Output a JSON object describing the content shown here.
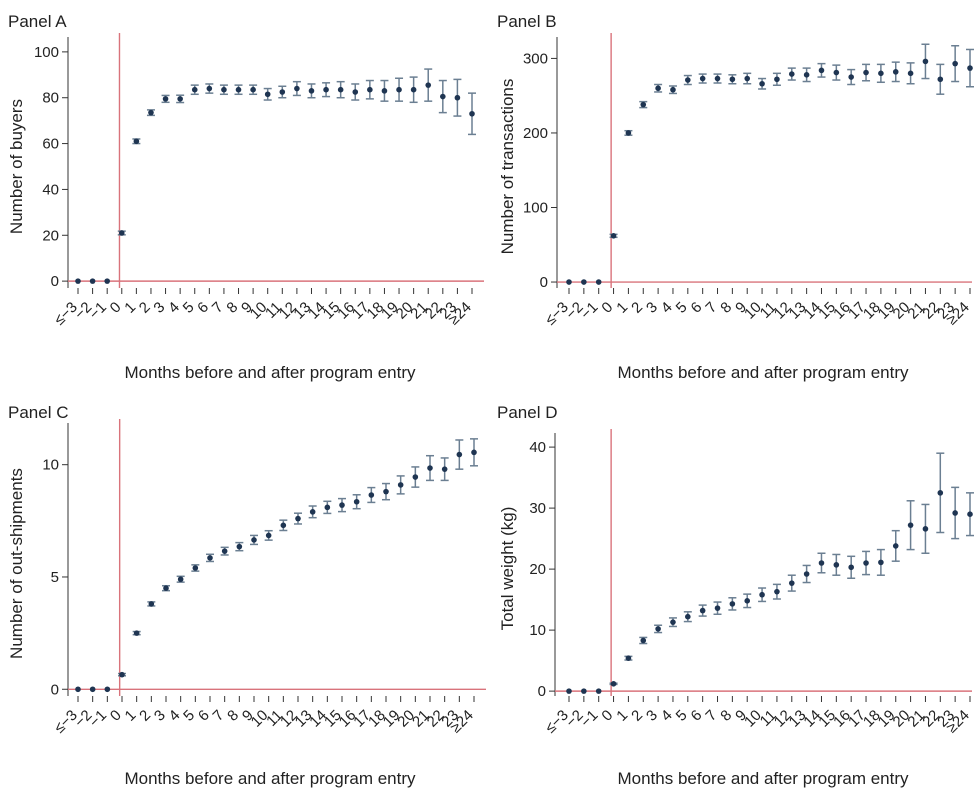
{
  "colors": {
    "point": "#1f3552",
    "error_bar": "#6b7f92",
    "reference_line": "#d9737b",
    "axis": "#333333"
  },
  "chart_data": [
    {
      "panel": "Panel A",
      "type": "scatter",
      "xlabel": "Months before and after program entry",
      "ylabel": "Number of buyers",
      "categories": [
        "≤−3",
        "−2",
        "−1",
        "0",
        "1",
        "2",
        "3",
        "4",
        "5",
        "6",
        "7",
        "8",
        "9",
        "10",
        "11",
        "12",
        "13",
        "14",
        "15",
        "16",
        "17",
        "18",
        "19",
        "20",
        "21",
        "22",
        "23",
        "≥24"
      ],
      "values": [
        0,
        0,
        0,
        21,
        61,
        73.5,
        79.5,
        79.5,
        83.5,
        84,
        83.5,
        83.5,
        83.5,
        81.5,
        82.5,
        84,
        83,
        83.5,
        83.5,
        82.5,
        83.5,
        83,
        83.5,
        83.5,
        85.5,
        80.5,
        80,
        73
      ],
      "error": [
        0,
        0,
        0,
        0.8,
        1,
        1.2,
        1.5,
        1.6,
        2,
        2,
        2,
        2,
        2,
        2.5,
        2.5,
        3,
        3,
        3,
        3.5,
        3.5,
        4,
        4.5,
        5,
        5.5,
        7,
        7,
        8,
        9
      ],
      "ylim": [
        -3,
        103
      ],
      "yticks": [
        0,
        20,
        40,
        60,
        80,
        100
      ],
      "reference_x": "0",
      "reference_y": 0,
      "grid": false
    },
    {
      "panel": "Panel B",
      "type": "scatter",
      "xlabel": "Months before and after program entry",
      "ylabel": "Number of transactions",
      "categories": [
        "≤−3",
        "−2",
        "−1",
        "0",
        "1",
        "2",
        "3",
        "4",
        "5",
        "6",
        "7",
        "8",
        "9",
        "10",
        "11",
        "12",
        "13",
        "14",
        "15",
        "16",
        "17",
        "18",
        "19",
        "20",
        "21",
        "22",
        "23",
        "≥24"
      ],
      "values": [
        0,
        0,
        0,
        62,
        200,
        238,
        260,
        258,
        271,
        273,
        273,
        272,
        273,
        266,
        272,
        279,
        278,
        284,
        281,
        275,
        281,
        280,
        282,
        280,
        296,
        272,
        293,
        287
      ],
      "error": [
        0,
        0,
        0,
        2,
        3,
        4,
        5,
        5,
        6,
        6,
        6,
        6,
        7,
        7,
        8,
        8,
        9,
        9,
        10,
        10,
        11,
        12,
        13,
        14,
        23,
        20,
        24,
        25
      ],
      "ylim": [
        -8,
        318
      ],
      "yticks": [
        0,
        100,
        200,
        300
      ],
      "reference_x": "0",
      "reference_y": 0,
      "grid": false
    },
    {
      "panel": "Panel C",
      "type": "scatter",
      "xlabel": "Months before and after program entry",
      "ylabel": "Number of out-shipments",
      "categories": [
        "≤−3",
        "−2",
        "−1",
        "0",
        "1",
        "2",
        "3",
        "4",
        "5",
        "6",
        "7",
        "8",
        "9",
        "10",
        "11",
        "12",
        "13",
        "14",
        "15",
        "16",
        "17",
        "18",
        "19",
        "20",
        "21",
        "22",
        "23",
        "≥24"
      ],
      "values": [
        0,
        0,
        0,
        0.65,
        2.5,
        3.8,
        4.5,
        4.9,
        5.4,
        5.85,
        6.15,
        6.35,
        6.65,
        6.85,
        7.3,
        7.6,
        7.9,
        8.1,
        8.2,
        8.35,
        8.65,
        8.8,
        9.1,
        9.45,
        9.85,
        9.8,
        10.45,
        10.55
      ],
      "error": [
        0,
        0,
        0,
        0.05,
        0.07,
        0.09,
        0.11,
        0.13,
        0.14,
        0.16,
        0.17,
        0.18,
        0.2,
        0.21,
        0.23,
        0.24,
        0.26,
        0.27,
        0.29,
        0.31,
        0.33,
        0.36,
        0.4,
        0.45,
        0.55,
        0.5,
        0.65,
        0.6
      ],
      "ylim": [
        -0.3,
        11.5
      ],
      "yticks": [
        0,
        5,
        10
      ],
      "reference_x": "0",
      "reference_y": 0,
      "grid": false
    },
    {
      "panel": "Panel D",
      "type": "scatter",
      "xlabel": "Months before and after program entry",
      "ylabel": "Total weight (kg)",
      "categories": [
        "≤−3",
        "−2",
        "−1",
        "0",
        "1",
        "2",
        "3",
        "4",
        "5",
        "6",
        "7",
        "8",
        "9",
        "10",
        "11",
        "12",
        "13",
        "14",
        "15",
        "16",
        "17",
        "18",
        "19",
        "20",
        "21",
        "22",
        "23",
        "≥24"
      ],
      "values": [
        0,
        0,
        0,
        1.2,
        5.4,
        8.3,
        10.2,
        11.3,
        12.2,
        13.2,
        13.6,
        14.3,
        14.8,
        15.8,
        16.3,
        17.7,
        19.2,
        21,
        20.7,
        20.3,
        21,
        21.1,
        23.8,
        27.2,
        26.6,
        32.5,
        29.2,
        29
      ],
      "error": [
        0,
        0,
        0,
        0.1,
        0.3,
        0.5,
        0.6,
        0.7,
        0.8,
        0.9,
        1,
        1,
        1.1,
        1.1,
        1.2,
        1.3,
        1.4,
        1.6,
        1.7,
        1.8,
        1.9,
        2.1,
        2.5,
        4,
        4,
        6.5,
        4.2,
        3.5
      ],
      "ylim": [
        -0.8,
        41
      ],
      "yticks": [
        0,
        10,
        20,
        30,
        40
      ],
      "reference_x": "0",
      "reference_y": 0,
      "grid": false
    }
  ]
}
